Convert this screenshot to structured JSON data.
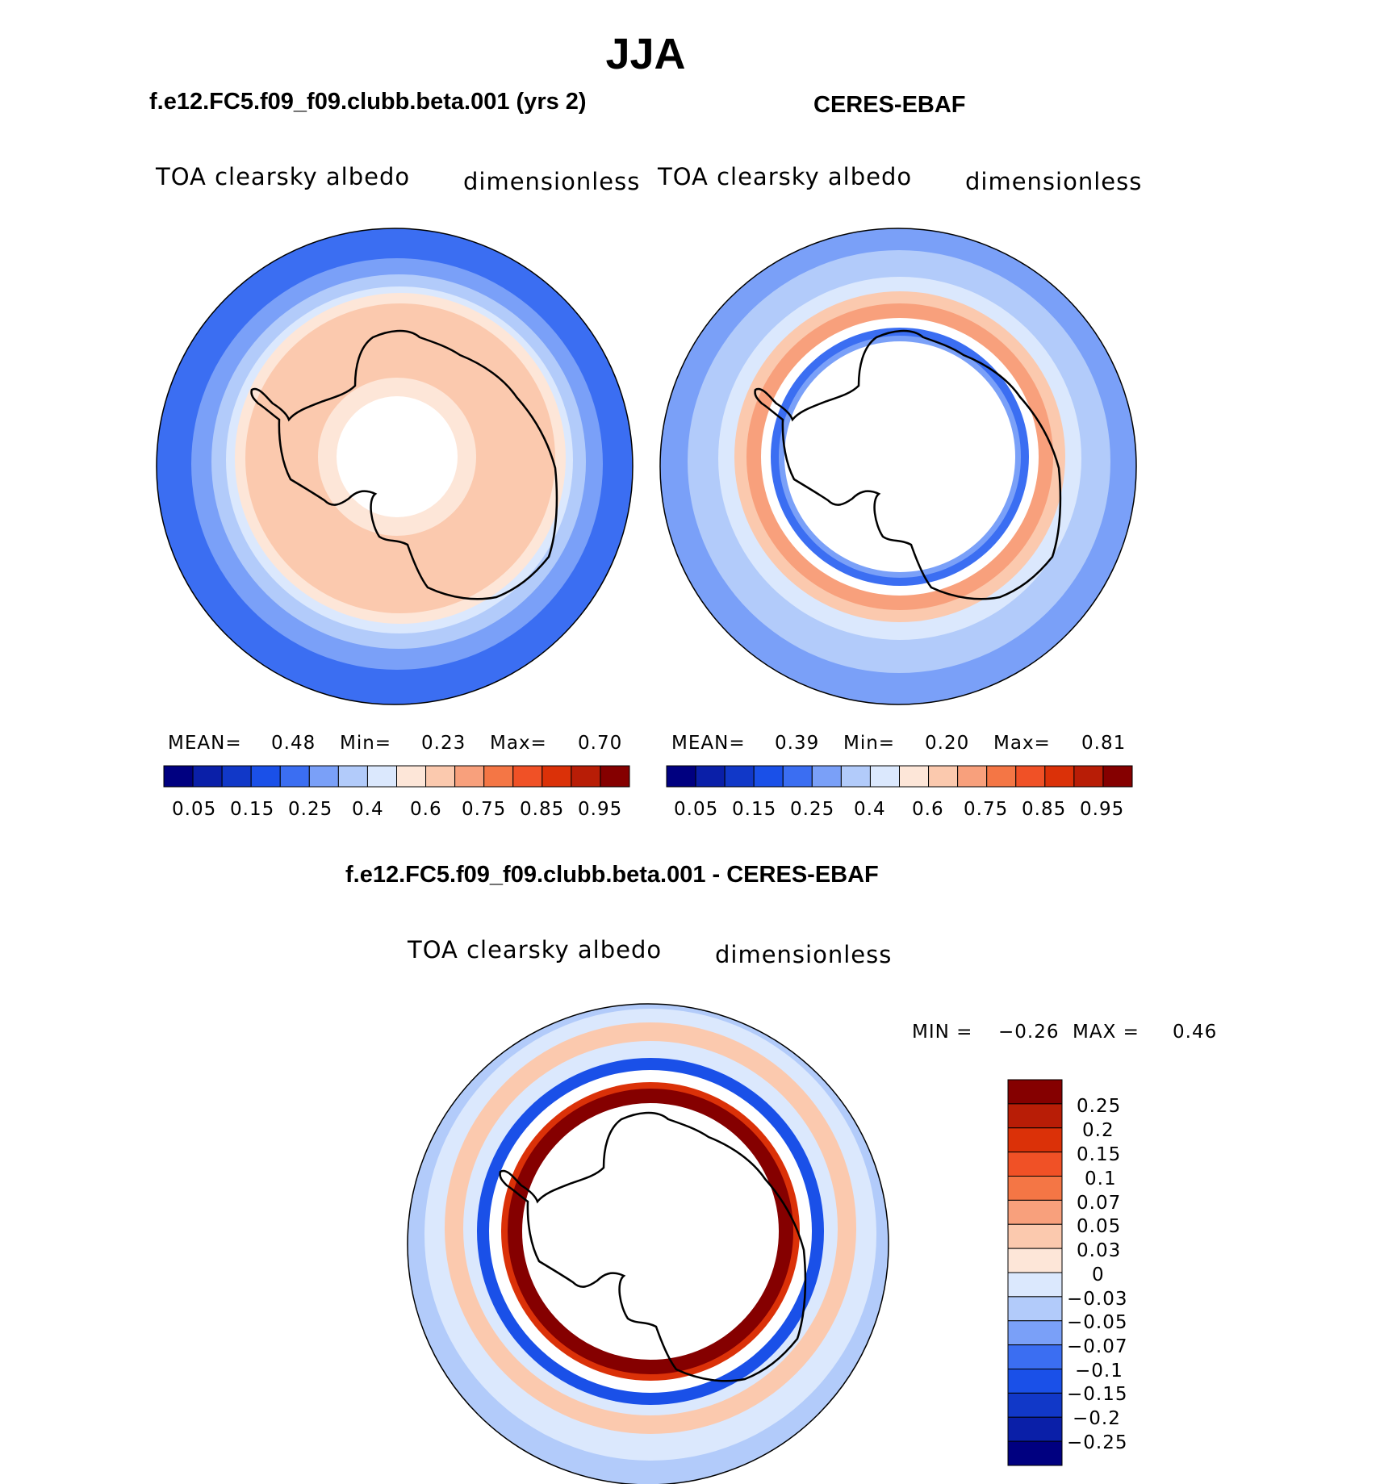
{
  "main_title": "JJA",
  "panels": [
    {
      "title": "f.e12.FC5.f09_f09.clubb.beta.001 (yrs 2)",
      "variable": "TOA clearsky albedo",
      "units": "dimensionless",
      "stats": {
        "mean_label": "MEAN=",
        "mean": "0.48",
        "min_label": "Min=",
        "min": "0.23",
        "max_label": "Max=",
        "max": "0.70"
      }
    },
    {
      "title": "CERES-EBAF",
      "variable": "TOA clearsky albedo",
      "units": "dimensionless",
      "stats": {
        "mean_label": "MEAN=",
        "mean": "0.39",
        "min_label": "Min=",
        "min": "0.20",
        "max_label": "Max=",
        "max": "0.81"
      }
    }
  ],
  "diff_panel": {
    "title": "f.e12.FC5.f09_f09.clubb.beta.001 - CERES-EBAF",
    "variable": "TOA clearsky albedo",
    "units": "dimensionless",
    "stats": {
      "min_label": "MIN =",
      "min": "−0.26",
      "max_label": "MAX =",
      "max": "0.46"
    }
  },
  "colorbars": {
    "abs_levels": [
      "0.05",
      "0.15",
      "0.25",
      "0.4",
      "0.6",
      "0.75",
      "0.85",
      "0.95"
    ],
    "abs_colors": [
      "#000080",
      "#0a1fa8",
      "#1138c8",
      "#1a50e8",
      "#3b6ef2",
      "#7aa0f8",
      "#b2cbfa",
      "#dbe8fd",
      "#fde6d8",
      "#fbc9ae",
      "#f8a07c",
      "#f47645",
      "#f05126",
      "#db3108",
      "#b81d06",
      "#850000"
    ],
    "diff_levels": [
      "0.25",
      "0.2",
      "0.15",
      "0.1",
      "0.07",
      "0.05",
      "0.03",
      "0",
      "−0.03",
      "−0.05",
      "−0.07",
      "−0.1",
      "−0.15",
      "−0.2",
      "−0.25"
    ],
    "diff_colors": [
      "#850000",
      "#b81d06",
      "#db3108",
      "#f05126",
      "#f47645",
      "#f8a07c",
      "#fbc9ae",
      "#fde6d8",
      "#dbe8fd",
      "#b2cbfa",
      "#7aa0f8",
      "#3b6ef2",
      "#1a50e8",
      "#1138c8",
      "#0a1fa8",
      "#000080"
    ]
  },
  "colors": {
    "ocean_deep": "#3b6ef2",
    "ocean_mid": "#7aa0f8",
    "ocean_light": "#b2cbfa",
    "pale_blue": "#dbe8fd",
    "pale_peach": "#fde6d8",
    "peach": "#fbc9ae",
    "orange": "#f8a07c",
    "red": "#db3108",
    "dark_red": "#850000",
    "strong_blue": "#1a50e8"
  }
}
